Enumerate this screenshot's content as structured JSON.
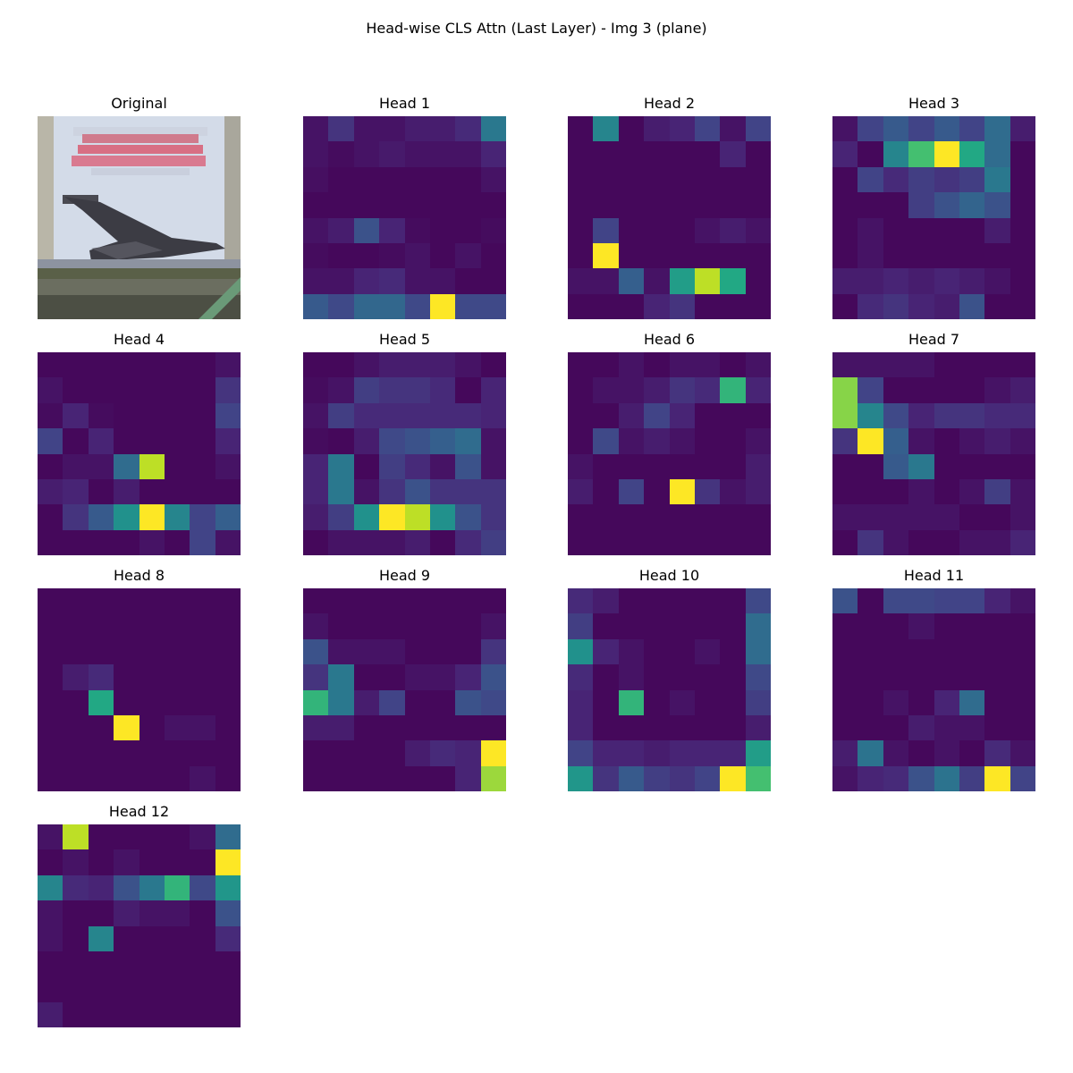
{
  "title": "Head-wise CLS Attn (Last Layer) - Img 3 (plane)",
  "original_label": "Original",
  "chart_data": {
    "type": "heatmap",
    "colormap": "viridis",
    "grid_size": [
      8,
      8
    ],
    "value_range": [
      0,
      1
    ],
    "panels": [
      {
        "title": "Head 1",
        "values": [
          [
            0.05,
            0.15,
            0.05,
            0.05,
            0.08,
            0.08,
            0.12,
            0.4
          ],
          [
            0.05,
            0.03,
            0.05,
            0.07,
            0.05,
            0.05,
            0.05,
            0.1
          ],
          [
            0.04,
            0.02,
            0.02,
            0.02,
            0.02,
            0.02,
            0.02,
            0.05
          ],
          [
            0.02,
            0.02,
            0.02,
            0.02,
            0.02,
            0.02,
            0.02,
            0.02
          ],
          [
            0.05,
            0.08,
            0.25,
            0.1,
            0.03,
            0.02,
            0.02,
            0.03
          ],
          [
            0.03,
            0.02,
            0.02,
            0.03,
            0.05,
            0.02,
            0.05,
            0.02
          ],
          [
            0.05,
            0.05,
            0.1,
            0.12,
            0.05,
            0.05,
            0.02,
            0.02
          ],
          [
            0.28,
            0.22,
            0.33,
            0.33,
            0.22,
            1.0,
            0.22,
            0.22
          ]
        ]
      },
      {
        "title": "Head 2",
        "values": [
          [
            0.02,
            0.45,
            0.02,
            0.08,
            0.1,
            0.2,
            0.05,
            0.2
          ],
          [
            0.02,
            0.02,
            0.02,
            0.02,
            0.02,
            0.02,
            0.1,
            0.02
          ],
          [
            0.02,
            0.02,
            0.02,
            0.02,
            0.02,
            0.02,
            0.02,
            0.02
          ],
          [
            0.02,
            0.02,
            0.02,
            0.02,
            0.02,
            0.02,
            0.02,
            0.02
          ],
          [
            0.02,
            0.2,
            0.02,
            0.02,
            0.02,
            0.05,
            0.08,
            0.05
          ],
          [
            0.02,
            1.0,
            0.02,
            0.02,
            0.02,
            0.02,
            0.02,
            0.02
          ],
          [
            0.05,
            0.05,
            0.3,
            0.05,
            0.55,
            0.9,
            0.6,
            0.02
          ],
          [
            0.02,
            0.02,
            0.02,
            0.1,
            0.15,
            0.02,
            0.02,
            0.02
          ]
        ]
      },
      {
        "title": "Head 3",
        "values": [
          [
            0.05,
            0.2,
            0.28,
            0.2,
            0.28,
            0.2,
            0.35,
            0.08
          ],
          [
            0.1,
            0.02,
            0.45,
            0.7,
            1.0,
            0.6,
            0.35,
            0.02
          ],
          [
            0.02,
            0.2,
            0.12,
            0.18,
            0.15,
            0.18,
            0.4,
            0.02
          ],
          [
            0.02,
            0.02,
            0.02,
            0.18,
            0.25,
            0.32,
            0.25,
            0.02
          ],
          [
            0.02,
            0.05,
            0.02,
            0.02,
            0.02,
            0.02,
            0.08,
            0.02
          ],
          [
            0.02,
            0.05,
            0.02,
            0.02,
            0.02,
            0.02,
            0.02,
            0.02
          ],
          [
            0.08,
            0.08,
            0.1,
            0.08,
            0.1,
            0.08,
            0.05,
            0.02
          ],
          [
            0.02,
            0.12,
            0.15,
            0.1,
            0.08,
            0.25,
            0.02,
            0.02
          ]
        ]
      },
      {
        "title": "Head 4",
        "values": [
          [
            0.02,
            0.02,
            0.02,
            0.02,
            0.02,
            0.02,
            0.02,
            0.05
          ],
          [
            0.05,
            0.02,
            0.02,
            0.02,
            0.02,
            0.02,
            0.02,
            0.15
          ],
          [
            0.03,
            0.1,
            0.03,
            0.02,
            0.02,
            0.02,
            0.02,
            0.2
          ],
          [
            0.2,
            0.02,
            0.1,
            0.02,
            0.02,
            0.02,
            0.02,
            0.1
          ],
          [
            0.02,
            0.05,
            0.05,
            0.35,
            0.9,
            0.02,
            0.02,
            0.05
          ],
          [
            0.08,
            0.1,
            0.02,
            0.08,
            0.02,
            0.02,
            0.02,
            0.02
          ],
          [
            0.02,
            0.15,
            0.28,
            0.5,
            1.0,
            0.45,
            0.2,
            0.3
          ],
          [
            0.02,
            0.02,
            0.02,
            0.02,
            0.05,
            0.02,
            0.2,
            0.05
          ]
        ]
      },
      {
        "title": "Head 5",
        "values": [
          [
            0.02,
            0.02,
            0.05,
            0.08,
            0.08,
            0.08,
            0.05,
            0.02
          ],
          [
            0.03,
            0.05,
            0.18,
            0.15,
            0.15,
            0.12,
            0.02,
            0.1
          ],
          [
            0.05,
            0.18,
            0.12,
            0.12,
            0.12,
            0.12,
            0.12,
            0.1
          ],
          [
            0.03,
            0.02,
            0.08,
            0.22,
            0.25,
            0.3,
            0.35,
            0.05
          ],
          [
            0.1,
            0.4,
            0.02,
            0.18,
            0.12,
            0.05,
            0.25,
            0.05
          ],
          [
            0.1,
            0.4,
            0.05,
            0.15,
            0.25,
            0.15,
            0.15,
            0.15
          ],
          [
            0.08,
            0.18,
            0.5,
            1.0,
            0.9,
            0.5,
            0.25,
            0.15
          ],
          [
            0.02,
            0.05,
            0.05,
            0.05,
            0.08,
            0.02,
            0.12,
            0.18
          ]
        ]
      },
      {
        "title": "Head 6",
        "values": [
          [
            0.02,
            0.02,
            0.05,
            0.02,
            0.05,
            0.05,
            0.02,
            0.05
          ],
          [
            0.02,
            0.05,
            0.05,
            0.08,
            0.15,
            0.12,
            0.65,
            0.1
          ],
          [
            0.02,
            0.02,
            0.08,
            0.2,
            0.1,
            0.02,
            0.02,
            0.02
          ],
          [
            0.02,
            0.22,
            0.05,
            0.08,
            0.05,
            0.02,
            0.02,
            0.05
          ],
          [
            0.05,
            0.02,
            0.02,
            0.02,
            0.02,
            0.02,
            0.02,
            0.08
          ],
          [
            0.08,
            0.02,
            0.2,
            0.02,
            1.0,
            0.15,
            0.05,
            0.08
          ],
          [
            0.02,
            0.02,
            0.02,
            0.02,
            0.02,
            0.02,
            0.02,
            0.02
          ],
          [
            0.02,
            0.02,
            0.02,
            0.02,
            0.02,
            0.02,
            0.02,
            0.02
          ]
        ]
      },
      {
        "title": "Head 7",
        "values": [
          [
            0.05,
            0.05,
            0.05,
            0.05,
            0.02,
            0.02,
            0.02,
            0.02
          ],
          [
            0.82,
            0.2,
            0.02,
            0.02,
            0.02,
            0.02,
            0.05,
            0.08
          ],
          [
            0.82,
            0.45,
            0.22,
            0.1,
            0.15,
            0.15,
            0.12,
            0.12
          ],
          [
            0.15,
            1.0,
            0.3,
            0.05,
            0.02,
            0.05,
            0.08,
            0.05
          ],
          [
            0.02,
            0.02,
            0.28,
            0.4,
            0.02,
            0.02,
            0.02,
            0.02
          ],
          [
            0.02,
            0.02,
            0.02,
            0.05,
            0.02,
            0.05,
            0.18,
            0.05
          ],
          [
            0.05,
            0.05,
            0.05,
            0.05,
            0.05,
            0.02,
            0.02,
            0.05
          ],
          [
            0.02,
            0.15,
            0.05,
            0.02,
            0.02,
            0.05,
            0.05,
            0.1
          ]
        ]
      },
      {
        "title": "Head 8",
        "values": [
          [
            0.02,
            0.02,
            0.02,
            0.02,
            0.02,
            0.02,
            0.02,
            0.02
          ],
          [
            0.02,
            0.02,
            0.02,
            0.02,
            0.02,
            0.02,
            0.02,
            0.02
          ],
          [
            0.02,
            0.02,
            0.02,
            0.02,
            0.02,
            0.02,
            0.02,
            0.02
          ],
          [
            0.02,
            0.08,
            0.12,
            0.02,
            0.02,
            0.02,
            0.02,
            0.02
          ],
          [
            0.02,
            0.02,
            0.6,
            0.02,
            0.02,
            0.02,
            0.02,
            0.02
          ],
          [
            0.02,
            0.02,
            0.02,
            1.0,
            0.02,
            0.05,
            0.05,
            0.02
          ],
          [
            0.02,
            0.02,
            0.02,
            0.02,
            0.02,
            0.02,
            0.02,
            0.02
          ],
          [
            0.02,
            0.02,
            0.02,
            0.02,
            0.02,
            0.02,
            0.05,
            0.02
          ]
        ]
      },
      {
        "title": "Head 9",
        "values": [
          [
            0.02,
            0.02,
            0.02,
            0.02,
            0.02,
            0.02,
            0.02,
            0.02
          ],
          [
            0.05,
            0.02,
            0.02,
            0.02,
            0.02,
            0.02,
            0.02,
            0.05
          ],
          [
            0.25,
            0.05,
            0.05,
            0.05,
            0.02,
            0.02,
            0.02,
            0.15
          ],
          [
            0.15,
            0.4,
            0.02,
            0.02,
            0.05,
            0.05,
            0.1,
            0.25
          ],
          [
            0.65,
            0.4,
            0.08,
            0.2,
            0.02,
            0.02,
            0.25,
            0.22
          ],
          [
            0.08,
            0.08,
            0.02,
            0.02,
            0.02,
            0.02,
            0.02,
            0.02
          ],
          [
            0.02,
            0.02,
            0.02,
            0.02,
            0.08,
            0.12,
            0.1,
            1.0
          ],
          [
            0.02,
            0.02,
            0.02,
            0.02,
            0.02,
            0.02,
            0.1,
            0.85
          ]
        ]
      },
      {
        "title": "Head 10",
        "values": [
          [
            0.12,
            0.08,
            0.02,
            0.02,
            0.02,
            0.02,
            0.02,
            0.22
          ],
          [
            0.18,
            0.02,
            0.02,
            0.02,
            0.02,
            0.02,
            0.02,
            0.35
          ],
          [
            0.5,
            0.1,
            0.05,
            0.02,
            0.02,
            0.05,
            0.02,
            0.35
          ],
          [
            0.12,
            0.02,
            0.05,
            0.02,
            0.02,
            0.02,
            0.02,
            0.22
          ],
          [
            0.1,
            0.02,
            0.65,
            0.02,
            0.05,
            0.02,
            0.02,
            0.18
          ],
          [
            0.1,
            0.02,
            0.02,
            0.02,
            0.02,
            0.02,
            0.02,
            0.08
          ],
          [
            0.2,
            0.1,
            0.1,
            0.08,
            0.1,
            0.1,
            0.1,
            0.55
          ],
          [
            0.52,
            0.15,
            0.28,
            0.18,
            0.15,
            0.2,
            1.0,
            0.7
          ]
        ]
      },
      {
        "title": "Head 11",
        "values": [
          [
            0.25,
            0.02,
            0.22,
            0.22,
            0.2,
            0.2,
            0.1,
            0.05
          ],
          [
            0.02,
            0.02,
            0.02,
            0.05,
            0.02,
            0.02,
            0.02,
            0.02
          ],
          [
            0.02,
            0.02,
            0.02,
            0.02,
            0.02,
            0.02,
            0.02,
            0.02
          ],
          [
            0.02,
            0.02,
            0.02,
            0.02,
            0.02,
            0.02,
            0.02,
            0.02
          ],
          [
            0.02,
            0.02,
            0.05,
            0.02,
            0.1,
            0.35,
            0.02,
            0.02
          ],
          [
            0.02,
            0.02,
            0.02,
            0.08,
            0.05,
            0.05,
            0.02,
            0.02
          ],
          [
            0.08,
            0.38,
            0.05,
            0.02,
            0.05,
            0.02,
            0.12,
            0.05
          ],
          [
            0.05,
            0.1,
            0.12,
            0.25,
            0.38,
            0.18,
            1.0,
            0.2
          ]
        ]
      },
      {
        "title": "Head 12",
        "values": [
          [
            0.05,
            0.9,
            0.02,
            0.02,
            0.02,
            0.02,
            0.05,
            0.35
          ],
          [
            0.02,
            0.05,
            0.02,
            0.05,
            0.02,
            0.02,
            0.02,
            1.0
          ],
          [
            0.45,
            0.12,
            0.1,
            0.25,
            0.4,
            0.65,
            0.22,
            0.52
          ],
          [
            0.05,
            0.02,
            0.02,
            0.08,
            0.05,
            0.05,
            0.02,
            0.25
          ],
          [
            0.05,
            0.02,
            0.45,
            0.02,
            0.02,
            0.02,
            0.02,
            0.12
          ],
          [
            0.02,
            0.02,
            0.02,
            0.02,
            0.02,
            0.02,
            0.02,
            0.02
          ],
          [
            0.02,
            0.02,
            0.02,
            0.02,
            0.02,
            0.02,
            0.02,
            0.02
          ],
          [
            0.08,
            0.02,
            0.02,
            0.02,
            0.02,
            0.02,
            0.02,
            0.02
          ]
        ]
      }
    ]
  }
}
